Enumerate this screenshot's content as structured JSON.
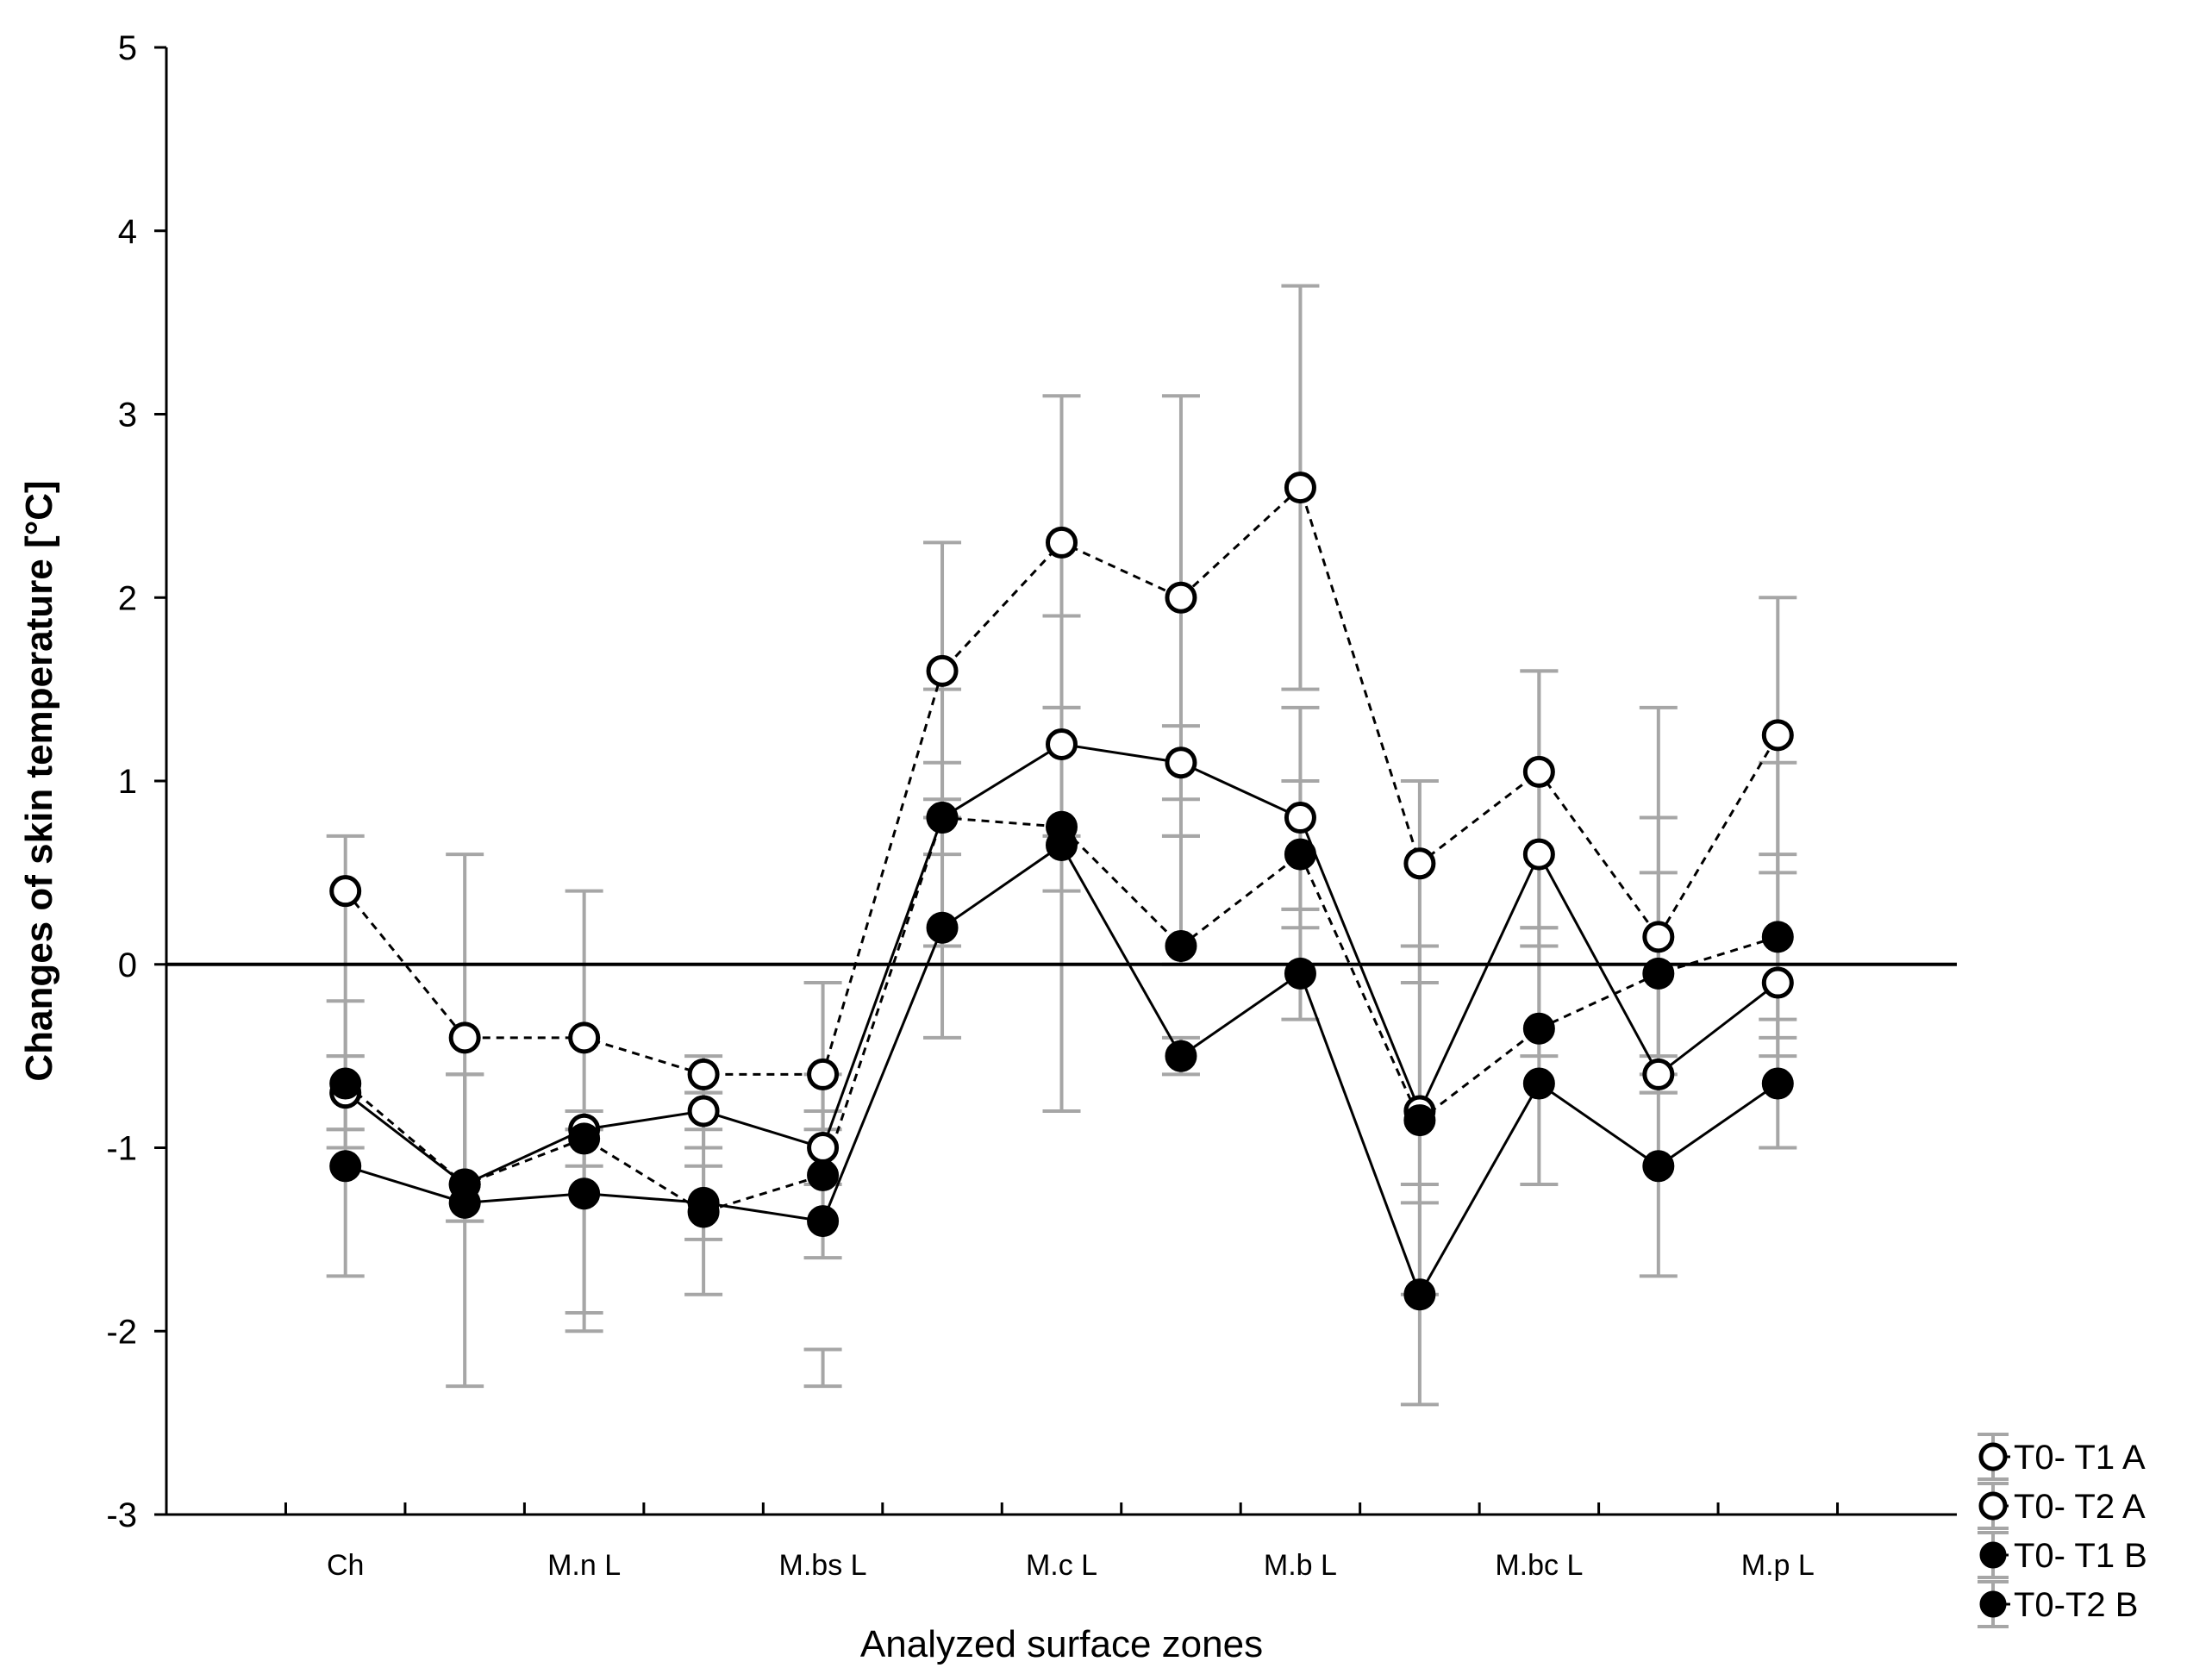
{
  "chart_data": {
    "type": "line",
    "title": "",
    "xlabel": "Analyzed surface zones",
    "ylabel": "Changes of skin temperature [°C]",
    "ylim": [
      -3,
      5
    ],
    "yticks": [
      -3,
      -2,
      -1,
      0,
      1,
      2,
      3,
      4,
      5
    ],
    "ytick_labels": [
      "-3",
      "-2",
      "-1",
      "0",
      "1",
      "2",
      "3",
      "4",
      "5"
    ],
    "positions": 15,
    "category_labels": [
      {
        "pos": 1,
        "label": "Ch"
      },
      {
        "pos": 3,
        "label": "M.n L"
      },
      {
        "pos": 5,
        "label": "M.bs L"
      },
      {
        "pos": 7,
        "label": "M.c L"
      },
      {
        "pos": 9,
        "label": "M.b L"
      },
      {
        "pos": 11,
        "label": "M.bc L"
      },
      {
        "pos": 13,
        "label": "M.p L"
      }
    ],
    "series": [
      {
        "name": "T0- T1 A",
        "marker": "open",
        "line": "solid",
        "values": [
          -0.7,
          -1.2,
          -0.9,
          -0.8,
          -1.0,
          0.8,
          1.2,
          1.1,
          0.8,
          -0.8,
          0.6,
          -0.6,
          -0.1
        ],
        "err_low": [
          -1.0,
          -1.4,
          -1.1,
          -1.0,
          -1.2,
          0.1,
          0.4,
          0.7,
          0.3,
          -1.3,
          0.1,
          -0.7,
          -0.5
        ],
        "err_high": [
          -0.2,
          -0.6,
          -0.8,
          -0.7,
          -0.8,
          1.5,
          1.9,
          1.3,
          1.4,
          0.1,
          1.6,
          0.5,
          0.6
        ]
      },
      {
        "name": "T0- T2 A",
        "marker": "open",
        "line": "dashed",
        "values": [
          0.4,
          -0.4,
          -0.4,
          -0.6,
          -0.6,
          1.6,
          2.3,
          2.0,
          2.6,
          0.55,
          1.05,
          0.15,
          1.25
        ],
        "err_low": [
          -0.5,
          -0.6,
          -0.9,
          -0.7,
          -0.9,
          0.9,
          1.4,
          0.9,
          1.5,
          -0.1,
          0.2,
          -0.5,
          0.5
        ],
        "err_high": [
          0.7,
          0.6,
          0.4,
          -0.5,
          -0.1,
          2.3,
          3.1,
          3.1,
          3.7,
          1.0,
          1.6,
          0.8,
          2.0
        ]
      },
      {
        "name": "T0- T1 B",
        "marker": "filled",
        "line": "dashed",
        "values": [
          -0.65,
          -1.2,
          -0.95,
          -1.35,
          -1.15,
          0.8,
          0.75,
          0.1,
          0.6,
          -0.85,
          -0.35,
          -0.05,
          0.15
        ],
        "err_low": [
          -0.9,
          -1.4,
          -2.0,
          -1.8,
          -1.6,
          0.6,
          0.7,
          0.0,
          0.2,
          -1.8,
          -0.5,
          -0.7,
          -0.4
        ],
        "err_high": [
          -0.5,
          -0.6,
          -0.8,
          -0.9,
          -0.6,
          1.1,
          1.4,
          0.7,
          1.0,
          0.1,
          0.2,
          1.4,
          1.1
        ]
      },
      {
        "name": "T0-T2 B",
        "marker": "filled",
        "line": "solid",
        "values": [
          -1.1,
          -1.3,
          -1.25,
          -1.3,
          -1.4,
          0.2,
          0.65,
          -0.5,
          -0.05,
          -1.8,
          -0.65,
          -1.1,
          -0.65
        ],
        "err_low": [
          -1.7,
          -2.3,
          -1.9,
          -1.5,
          -2.3,
          -0.4,
          -0.8,
          -0.6,
          -0.3,
          -2.4,
          -1.2,
          -1.7,
          -1.0
        ],
        "err_high": [
          -0.9,
          -0.6,
          -0.9,
          -1.1,
          -2.1,
          0.8,
          1.9,
          -0.4,
          0.3,
          -1.2,
          0.1,
          -0.6,
          -0.3
        ]
      }
    ],
    "zero_line": true,
    "legend_position": "bottom-right"
  }
}
